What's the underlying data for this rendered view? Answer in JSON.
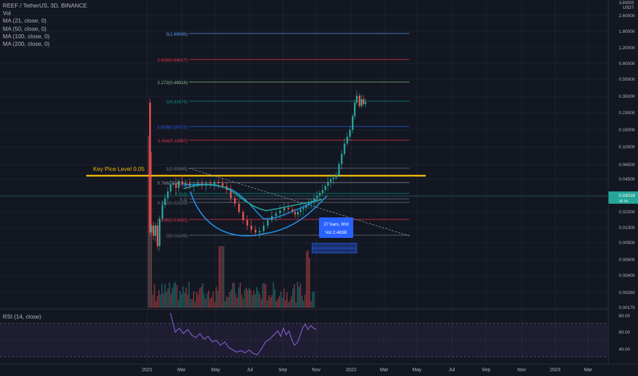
{
  "legend": {
    "title": "REEF / TetherUS, 3D, BINANCE",
    "vol": "Vol",
    "ma": [
      "MA (21, close, 0)",
      "MA (50, close, 0)",
      "MA (100, close, 0)",
      "MA (200, close, 0)"
    ]
  },
  "price_axis": {
    "corner": [
      "3.80000",
      "USDT"
    ],
    "ticks": [
      "2.60000",
      "1.80000",
      "1.20000",
      "0.80000",
      "0.55000",
      "0.35000",
      "0.23000",
      "0.15000",
      "0.10000",
      "0.06500",
      "0.04500",
      "0.03000",
      "0.02000",
      "0.01300",
      "0.00900",
      "0.00600",
      "0.00400",
      "0.00260",
      "0.00175"
    ],
    "current_price": "0.03018",
    "current_sub": "26 5h"
  },
  "time_axis": {
    "ticks": [
      "2021",
      "Mar",
      "May",
      "Jul",
      "Sep",
      "Nov",
      "2022",
      "Mar",
      "May",
      "Jul",
      "Sep",
      "Nov",
      "2023",
      "Mar"
    ]
  },
  "fib_levels": [
    {
      "label": "3(1.68586)",
      "color": "#5b9cf6"
    },
    {
      "label": "2.618(0.89017)",
      "color": "#f23645"
    },
    {
      "label": "2.272(0.49916)",
      "color": "#81c784"
    },
    {
      "label": "2(0.31675)",
      "color": "#089981"
    },
    {
      "label": "1.618(0.16721)",
      "color": "#2962ff"
    },
    {
      "label": "1.414(0.11887)",
      "color": "#f23645"
    },
    {
      "label": "1(0.05945)",
      "color": "#787b86"
    },
    {
      "label": "0.786(0.04154)",
      "color": "#9598a1"
    },
    {
      "label": "0.618(",
      "color": "#089981"
    },
    {
      "label": "0.5(",
      "color": "#787b86"
    },
    {
      "label": "0.382(0.02109)",
      "color": "#787b86"
    },
    {
      "label": "0.236(0.01650)",
      "color": "#f23645"
    },
    {
      "label": "0(0.01109)",
      "color": "#787b86"
    }
  ],
  "key_level": {
    "label": "Key Pice Level 0.05",
    "color": "#f0b90b"
  },
  "measure_box": {
    "line1": "27 bars, 80d",
    "line2": "Vol 2.483B"
  },
  "rsi": {
    "label": "RSI (14, close)",
    "ticks": [
      "80.00",
      "60.00",
      "40.00"
    ],
    "color": "#7e57c2"
  },
  "colors": {
    "background": "#131722",
    "up": "#26a69a",
    "down": "#ef5350",
    "ma_blue": "#2196f3",
    "ma_teal": "#26a69a",
    "arc": "#2196f3"
  }
}
